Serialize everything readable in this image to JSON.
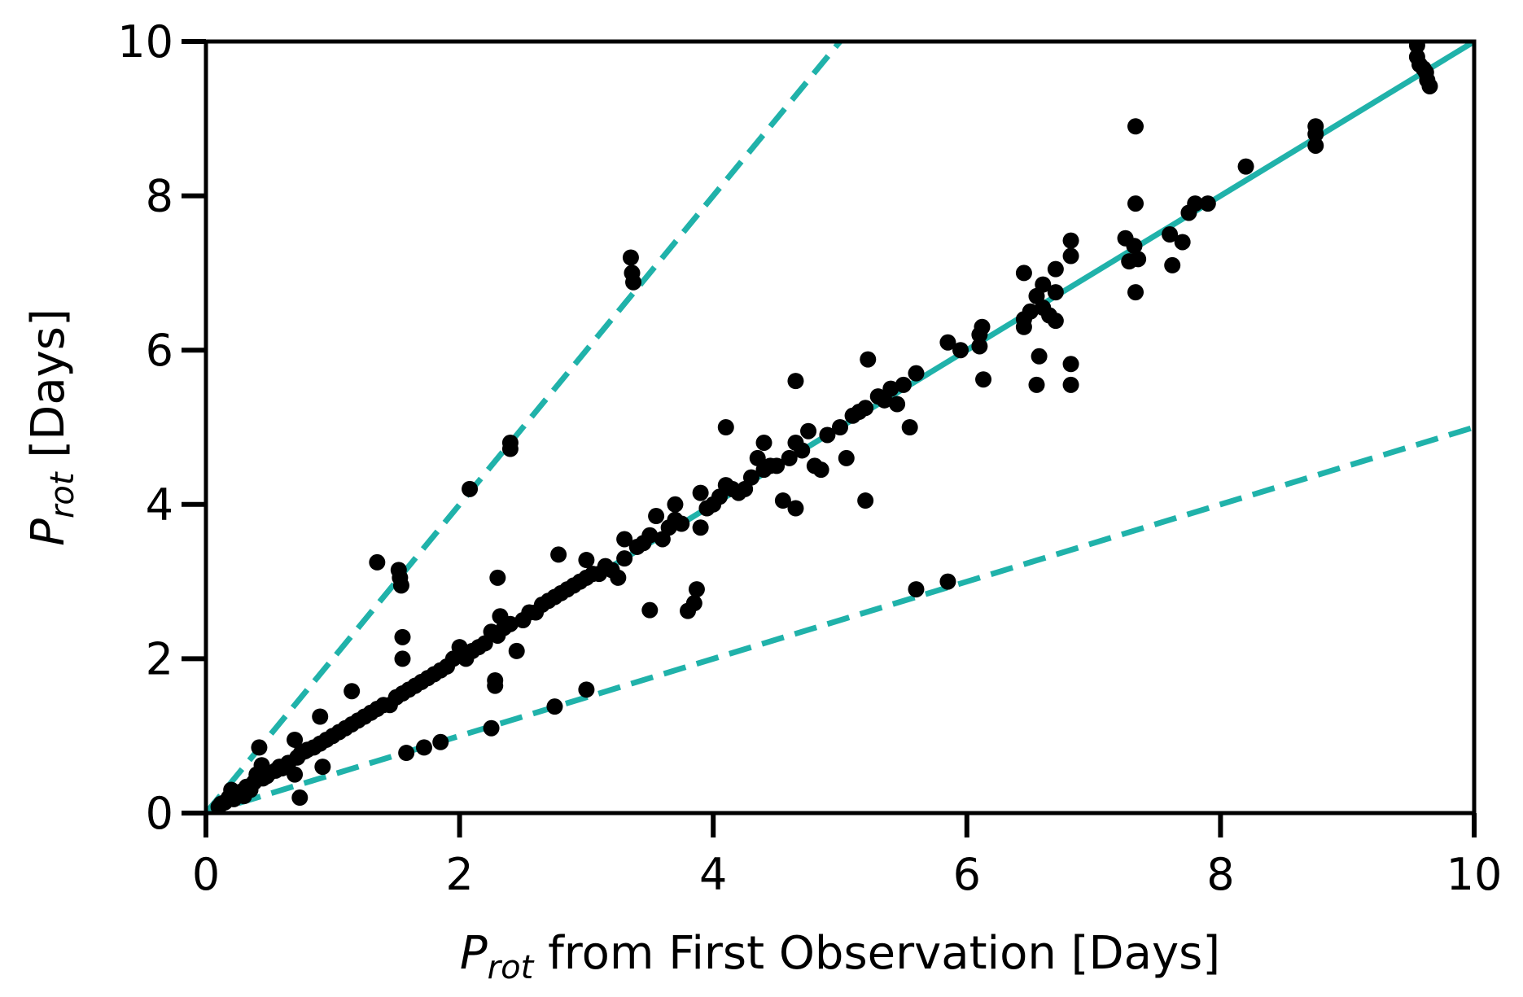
{
  "chart_data": {
    "type": "scatter",
    "title": "",
    "xlabel": {
      "main": "P",
      "sub": "rot",
      "rest": " from First Observation [Days]"
    },
    "ylabel": {
      "main": "P",
      "sub": "rot",
      "rest": " [Days]"
    },
    "xlim": [
      0,
      10
    ],
    "ylim": [
      0,
      10
    ],
    "xticks": [
      "0",
      "2",
      "4",
      "6",
      "8",
      "10"
    ],
    "yticks": [
      "0",
      "2",
      "4",
      "6",
      "8",
      "10"
    ],
    "grid": false,
    "colors": {
      "points": "#000000",
      "lines": "#20b2aa"
    },
    "reference_lines": [
      {
        "style": "solid",
        "slope": 1
      },
      {
        "style": "dashed",
        "slope": 2
      },
      {
        "style": "dashed",
        "slope": 0.5
      }
    ],
    "points": [
      [
        0.1,
        0.08
      ],
      [
        0.12,
        0.12
      ],
      [
        0.15,
        0.14
      ],
      [
        0.18,
        0.2
      ],
      [
        0.2,
        0.3
      ],
      [
        0.22,
        0.18
      ],
      [
        0.25,
        0.25
      ],
      [
        0.28,
        0.28
      ],
      [
        0.3,
        0.22
      ],
      [
        0.32,
        0.34
      ],
      [
        0.35,
        0.3
      ],
      [
        0.38,
        0.4
      ],
      [
        0.4,
        0.5
      ],
      [
        0.42,
        0.85
      ],
      [
        0.44,
        0.62
      ],
      [
        0.45,
        0.45
      ],
      [
        0.48,
        0.48
      ],
      [
        0.5,
        0.52
      ],
      [
        0.55,
        0.55
      ],
      [
        0.58,
        0.6
      ],
      [
        0.6,
        0.58
      ],
      [
        0.65,
        0.65
      ],
      [
        0.7,
        0.95
      ],
      [
        0.7,
        0.5
      ],
      [
        0.72,
        0.72
      ],
      [
        0.74,
        0.2
      ],
      [
        0.75,
        0.78
      ],
      [
        0.78,
        0.8
      ],
      [
        0.8,
        0.82
      ],
      [
        0.85,
        0.85
      ],
      [
        0.9,
        1.25
      ],
      [
        0.9,
        0.9
      ],
      [
        0.92,
        0.6
      ],
      [
        0.95,
        0.95
      ],
      [
        1.0,
        1.0
      ],
      [
        1.05,
        1.05
      ],
      [
        1.1,
        1.1
      ],
      [
        1.15,
        1.58
      ],
      [
        1.15,
        1.15
      ],
      [
        1.2,
        1.2
      ],
      [
        1.25,
        1.25
      ],
      [
        1.3,
        1.3
      ],
      [
        1.35,
        3.25
      ],
      [
        1.35,
        1.35
      ],
      [
        1.4,
        1.4
      ],
      [
        1.45,
        1.4
      ],
      [
        1.5,
        1.5
      ],
      [
        1.52,
        3.15
      ],
      [
        1.53,
        3.05
      ],
      [
        1.54,
        2.95
      ],
      [
        1.55,
        2.28
      ],
      [
        1.55,
        2.0
      ],
      [
        1.55,
        1.55
      ],
      [
        1.58,
        0.78
      ],
      [
        1.6,
        1.6
      ],
      [
        1.65,
        1.65
      ],
      [
        1.7,
        1.7
      ],
      [
        1.72,
        0.85
      ],
      [
        1.75,
        1.75
      ],
      [
        1.8,
        1.8
      ],
      [
        1.85,
        0.92
      ],
      [
        1.85,
        1.85
      ],
      [
        1.9,
        1.9
      ],
      [
        1.95,
        2.0
      ],
      [
        2.0,
        2.05
      ],
      [
        2.0,
        2.15
      ],
      [
        2.05,
        2.0
      ],
      [
        2.08,
        4.2
      ],
      [
        2.1,
        2.1
      ],
      [
        2.15,
        2.15
      ],
      [
        2.2,
        2.2
      ],
      [
        2.25,
        2.35
      ],
      [
        2.25,
        1.1
      ],
      [
        2.28,
        1.72
      ],
      [
        2.28,
        1.65
      ],
      [
        2.3,
        3.05
      ],
      [
        2.3,
        2.3
      ],
      [
        2.32,
        2.55
      ],
      [
        2.35,
        2.4
      ],
      [
        2.4,
        4.8
      ],
      [
        2.4,
        4.72
      ],
      [
        2.4,
        2.45
      ],
      [
        2.45,
        2.1
      ],
      [
        2.5,
        2.5
      ],
      [
        2.55,
        2.6
      ],
      [
        2.6,
        2.6
      ],
      [
        2.65,
        2.7
      ],
      [
        2.7,
        2.75
      ],
      [
        2.75,
        2.8
      ],
      [
        2.75,
        1.38
      ],
      [
        2.78,
        3.35
      ],
      [
        2.8,
        2.85
      ],
      [
        2.85,
        2.9
      ],
      [
        2.9,
        2.95
      ],
      [
        2.95,
        3.0
      ],
      [
        3.0,
        3.28
      ],
      [
        3.0,
        3.05
      ],
      [
        3.0,
        1.6
      ],
      [
        3.05,
        3.1
      ],
      [
        3.1,
        3.1
      ],
      [
        3.15,
        3.2
      ],
      [
        3.2,
        3.15
      ],
      [
        3.25,
        3.05
      ],
      [
        3.3,
        3.55
      ],
      [
        3.3,
        3.3
      ],
      [
        3.35,
        7.2
      ],
      [
        3.36,
        7.0
      ],
      [
        3.37,
        6.88
      ],
      [
        3.4,
        3.45
      ],
      [
        3.45,
        3.5
      ],
      [
        3.5,
        3.6
      ],
      [
        3.5,
        2.63
      ],
      [
        3.55,
        3.85
      ],
      [
        3.6,
        3.55
      ],
      [
        3.65,
        3.7
      ],
      [
        3.7,
        4.0
      ],
      [
        3.7,
        3.8
      ],
      [
        3.75,
        3.75
      ],
      [
        3.8,
        2.62
      ],
      [
        3.85,
        2.72
      ],
      [
        3.87,
        2.9
      ],
      [
        3.9,
        4.15
      ],
      [
        3.9,
        3.7
      ],
      [
        3.95,
        3.95
      ],
      [
        4.0,
        4.0
      ],
      [
        4.05,
        4.1
      ],
      [
        4.1,
        5.0
      ],
      [
        4.1,
        4.25
      ],
      [
        4.15,
        4.2
      ],
      [
        4.2,
        4.15
      ],
      [
        4.25,
        4.2
      ],
      [
        4.3,
        4.35
      ],
      [
        4.35,
        4.6
      ],
      [
        4.4,
        4.8
      ],
      [
        4.4,
        4.45
      ],
      [
        4.45,
        4.5
      ],
      [
        4.5,
        4.5
      ],
      [
        4.55,
        4.05
      ],
      [
        4.6,
        4.6
      ],
      [
        4.65,
        5.6
      ],
      [
        4.65,
        4.8
      ],
      [
        4.65,
        3.95
      ],
      [
        4.7,
        4.7
      ],
      [
        4.75,
        4.95
      ],
      [
        4.8,
        4.5
      ],
      [
        4.85,
        4.45
      ],
      [
        4.9,
        4.9
      ],
      [
        5.0,
        5.0
      ],
      [
        5.05,
        4.6
      ],
      [
        5.1,
        5.15
      ],
      [
        5.15,
        5.2
      ],
      [
        5.2,
        4.05
      ],
      [
        5.2,
        5.25
      ],
      [
        5.22,
        5.88
      ],
      [
        5.3,
        5.4
      ],
      [
        5.35,
        5.35
      ],
      [
        5.4,
        5.5
      ],
      [
        5.45,
        5.3
      ],
      [
        5.5,
        5.55
      ],
      [
        5.55,
        5.0
      ],
      [
        5.6,
        5.7
      ],
      [
        5.6,
        2.9
      ],
      [
        5.85,
        6.1
      ],
      [
        5.85,
        3.0
      ],
      [
        5.95,
        6.0
      ],
      [
        6.1,
        6.2
      ],
      [
        6.1,
        6.05
      ],
      [
        6.12,
        6.3
      ],
      [
        6.13,
        5.62
      ],
      [
        6.45,
        7.0
      ],
      [
        6.45,
        6.4
      ],
      [
        6.45,
        6.3
      ],
      [
        6.5,
        6.5
      ],
      [
        6.55,
        6.7
      ],
      [
        6.55,
        5.55
      ],
      [
        6.57,
        5.92
      ],
      [
        6.6,
        6.85
      ],
      [
        6.6,
        6.55
      ],
      [
        6.65,
        6.45
      ],
      [
        6.7,
        7.05
      ],
      [
        6.7,
        6.75
      ],
      [
        6.7,
        6.38
      ],
      [
        6.82,
        7.42
      ],
      [
        6.82,
        7.22
      ],
      [
        6.82,
        5.82
      ],
      [
        6.82,
        5.55
      ],
      [
        7.25,
        7.45
      ],
      [
        7.28,
        7.15
      ],
      [
        7.32,
        7.35
      ],
      [
        7.33,
        8.9
      ],
      [
        7.33,
        7.9
      ],
      [
        7.33,
        6.75
      ],
      [
        7.35,
        7.18
      ],
      [
        7.6,
        7.5
      ],
      [
        7.62,
        7.1
      ],
      [
        7.7,
        7.4
      ],
      [
        7.75,
        7.78
      ],
      [
        7.8,
        7.9
      ],
      [
        7.9,
        7.9
      ],
      [
        8.2,
        8.38
      ],
      [
        8.75,
        8.9
      ],
      [
        8.75,
        8.8
      ],
      [
        8.75,
        8.65
      ],
      [
        9.55,
        9.95
      ],
      [
        9.55,
        9.8
      ],
      [
        9.57,
        9.7
      ],
      [
        9.6,
        9.65
      ],
      [
        9.62,
        9.6
      ],
      [
        9.63,
        9.5
      ],
      [
        9.65,
        9.42
      ]
    ]
  }
}
